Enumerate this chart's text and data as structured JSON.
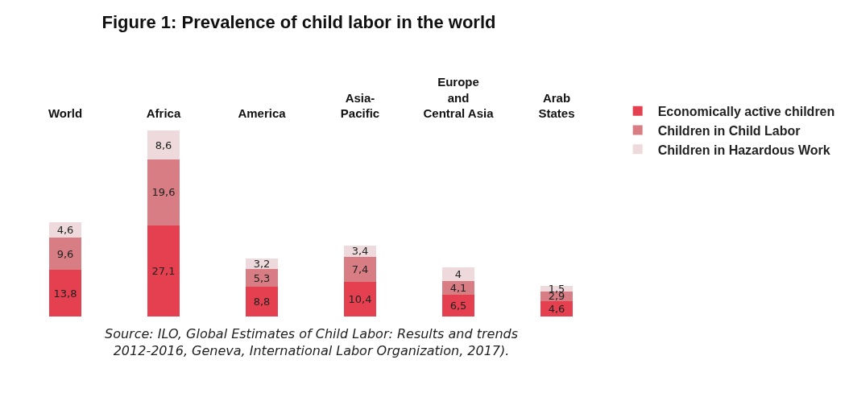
{
  "chart_data": {
    "type": "bar",
    "title": "Figure 1: Prevalence of child labor in the world",
    "categories": [
      "World",
      "Africa",
      "America",
      "Asia-\nPacific",
      "Europe\nand\nCentral Asia",
      "Arab\nStates"
    ],
    "stacked": true,
    "series": [
      {
        "name": "Economically active children",
        "color": "#e5404f",
        "values": [
          13.8,
          27.1,
          8.8,
          10.4,
          6.5,
          4.6
        ],
        "value_labels": [
          "13,8",
          "27,1",
          "8,8",
          "10,4",
          "6,5",
          "4,6"
        ]
      },
      {
        "name": "Children in Child Labor",
        "color": "#d97d85",
        "values": [
          9.6,
          19.6,
          5.3,
          7.4,
          4.1,
          2.9
        ],
        "value_labels": [
          "9,6",
          "19,6",
          "5,3",
          "7,4",
          "4,1",
          "2,9"
        ]
      },
      {
        "name": "Children in Hazardous Work",
        "color": "#eedadd",
        "values": [
          4.6,
          8.6,
          3.2,
          3.4,
          4,
          1.5
        ],
        "value_labels": [
          "4,6",
          "8,6",
          "3,2",
          "3,4",
          "4",
          "1,5"
        ]
      }
    ],
    "legend": "top right",
    "grid": false,
    "annotations": [
      "Source: ILO, Global Estimates of Child Labor: Results and trends\n2012-2016, Geneva, International Labor Organization, 2017)."
    ]
  }
}
